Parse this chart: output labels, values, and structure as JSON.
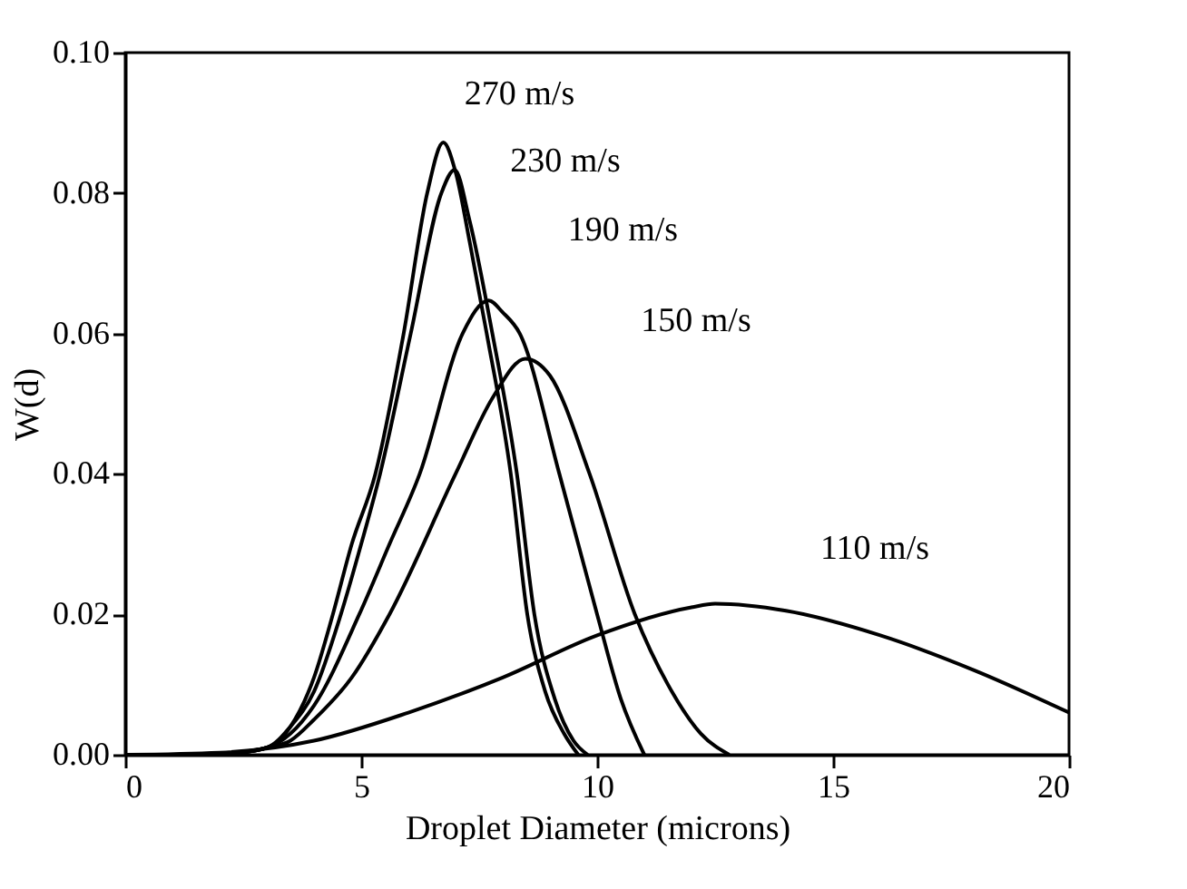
{
  "chart_data": {
    "type": "line",
    "xlabel": "Droplet Diameter (microns)",
    "ylabel": "W(d)",
    "xlim": [
      0,
      20
    ],
    "xticks": [
      0,
      5,
      10,
      15,
      20
    ],
    "ylim": [
      0,
      0.1
    ],
    "yticks": [
      {
        "value": 0,
        "label": "0.00"
      },
      {
        "value": 0.02,
        "label": "0.02"
      },
      {
        "value": 0.04,
        "label": "0.04"
      },
      {
        "value": 0.06,
        "label": "0.06"
      },
      {
        "value": 0.08,
        "label": "0.08"
      },
      {
        "value": 0.1,
        "label": "0.10"
      }
    ],
    "grid": false,
    "legend": false,
    "marker": "none",
    "line_style": "solid",
    "series": [
      {
        "name": "270 m/s",
        "color": "#000000",
        "x": [
          2,
          3,
          3.5,
          4,
          4.4,
          4.8,
          5.3,
          5.9,
          6.4,
          6.74,
          7.0,
          7.3,
          7.66,
          8.17,
          8.52,
          8.9,
          9.3,
          9.6
        ],
        "values": [
          0,
          0.001,
          0.004,
          0.011,
          0.02,
          0.03,
          0.04,
          0.06,
          0.08,
          0.0872,
          0.083,
          0.073,
          0.06,
          0.04,
          0.02,
          0.009,
          0.003,
          0
        ]
      },
      {
        "name": "230 m/s",
        "color": "#000000",
        "x": [
          2,
          3,
          3.5,
          4,
          4.57,
          5.0,
          5.4,
          6.05,
          6.7,
          6.98,
          7.3,
          7.78,
          8.3,
          8.67,
          9.1,
          9.5,
          9.8
        ],
        "values": [
          0,
          0.001,
          0.004,
          0.009,
          0.02,
          0.03,
          0.04,
          0.06,
          0.08,
          0.0833,
          0.076,
          0.06,
          0.04,
          0.02,
          0.008,
          0.002,
          0
        ]
      },
      {
        "name": "190 m/s",
        "color": "#000000",
        "x": [
          2,
          3,
          3.5,
          4,
          4.96,
          5.6,
          6.24,
          7.15,
          7.7,
          8.0,
          8.36,
          9.2,
          10.0,
          10.5,
          11.0
        ],
        "values": [
          0,
          0.001,
          0.003,
          0.007,
          0.02,
          0.03,
          0.04,
          0.06,
          0.0647,
          0.063,
          0.06,
          0.04,
          0.02,
          0.008,
          0
        ]
      },
      {
        "name": "150 m/s",
        "color": "#000000",
        "x": [
          2,
          3,
          3.5,
          4,
          4.8,
          5.6,
          7.0,
          7.8,
          8.48,
          9.0,
          9.84,
          10.8,
          11.5,
          12.2,
          12.8
        ],
        "values": [
          0,
          0.001,
          0.002,
          0.005,
          0.011,
          0.02,
          0.04,
          0.051,
          0.0564,
          0.054,
          0.04,
          0.02,
          0.01,
          0.003,
          0
        ]
      },
      {
        "name": "110 m/s",
        "color": "#000000",
        "x": [
          0,
          2,
          4,
          6,
          8,
          10,
          12,
          12.5,
          14,
          16,
          18,
          20
        ],
        "values": [
          0,
          0.0003,
          0.002,
          0.006,
          0.011,
          0.017,
          0.021,
          0.0215,
          0.0205,
          0.017,
          0.012,
          0.006
        ]
      }
    ]
  }
}
